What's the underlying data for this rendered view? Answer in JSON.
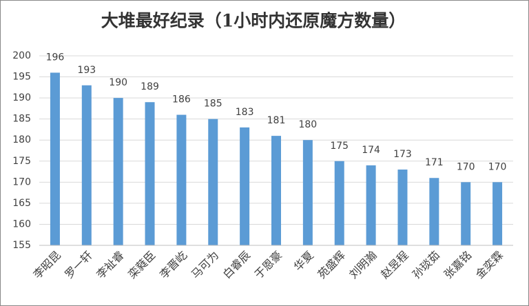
{
  "chart_data": {
    "type": "bar",
    "title": "大堆最好纪录（1小时内还原魔方数量）",
    "categories": [
      "李昭昆",
      "罗一轩",
      "李祉睿",
      "栾蕤臣",
      "李晋屹",
      "马可为",
      "白睿辰",
      "于恩豪",
      "华夏",
      "苑盛辉",
      "刘明瀚",
      "赵昱程",
      "孙琰茹",
      "张嘉铭",
      "金奕霖"
    ],
    "values": [
      196,
      193,
      190,
      189,
      186,
      185,
      183,
      181,
      180,
      175,
      174,
      173,
      171,
      170,
      170
    ],
    "color": "#5b9bd5",
    "ylim": [
      155,
      200
    ],
    "yticks": [
      155,
      160,
      165,
      170,
      175,
      180,
      185,
      190,
      195,
      200
    ],
    "grid": true
  }
}
